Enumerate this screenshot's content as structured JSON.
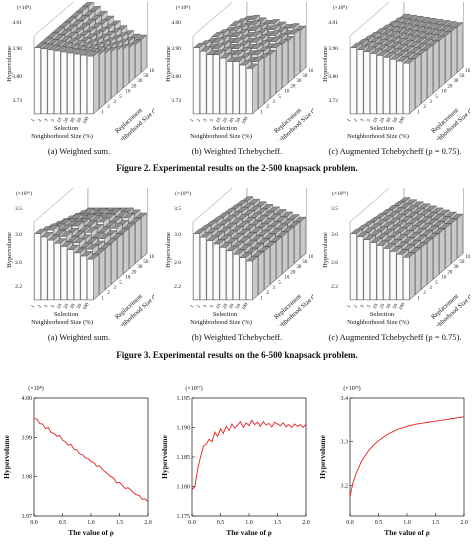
{
  "fig2": {
    "caption": "Figure 2. Experimental results on the 2-500 knapsack problem.",
    "panels": [
      {
        "mult": "(×10⁸)",
        "yticks": [
          "4.01",
          "3.90",
          "3.80",
          "3.73"
        ],
        "ylabel": "Hypervolume",
        "xlabel": "Selection",
        "xlabel2": "Neighborhood Size (%)",
        "zlabel": "Replacement",
        "zlabel2": "Neighborhood Size (%)",
        "xticks": [
          "1",
          "2",
          "3",
          "5",
          "10",
          "20",
          "30",
          "50",
          "100"
        ],
        "zticks": [
          "100",
          "50",
          "30",
          "20",
          "10",
          "5",
          "3",
          "2",
          "1"
        ],
        "caption": "(a) Weighted sum.",
        "pattern": "a"
      },
      {
        "mult": "(×10⁸)",
        "yticks": [
          "4.00",
          "3.90",
          "3.80",
          "3.73"
        ],
        "ylabel": "Hypervolume",
        "xlabel": "Selection",
        "xlabel2": "Neighborhood Size (%)",
        "zlabel": "Replacement",
        "zlabel2": "Neighborhood Size (%)",
        "xticks": [
          "1",
          "2",
          "3",
          "5",
          "10",
          "20",
          "30",
          "50",
          "100"
        ],
        "zticks": [
          "100",
          "50",
          "30",
          "20",
          "10",
          "5",
          "3",
          "2",
          "1"
        ],
        "caption": "(b) Weighted Tchebycheff.",
        "pattern": "b"
      },
      {
        "mult": "(×10⁸)",
        "yticks": [
          "4.01",
          "3.90",
          "3.80",
          "3.72"
        ],
        "ylabel": "Hypervolume",
        "xlabel": "Selection",
        "xlabel2": "Neighborhood Size (%)",
        "zlabel": "Replacement",
        "zlabel2": "Neighborhood Size (%)",
        "xticks": [
          "1",
          "2",
          "3",
          "5",
          "10",
          "20",
          "30",
          "50",
          "100"
        ],
        "zticks": [
          "100",
          "50",
          "30",
          "20",
          "10",
          "5",
          "3",
          "2",
          "1"
        ],
        "caption": "(c) Augmented Tchebycheff (ρ = 0.75).",
        "pattern": "c"
      }
    ]
  },
  "fig3": {
    "caption": "Figure 3. Experimental results on the 6-500 knapsack problem.",
    "panels": [
      {
        "mult": "(×10²⁹)",
        "yticks": [
          "3.5",
          "3.0",
          "2.6",
          "2.2"
        ],
        "ylabel": "Hypervolume",
        "xlabel": "Selection",
        "xlabel2": "Neighborhood Size (%)",
        "zlabel": "Replacement",
        "zlabel2": "Neighborhood Size (%)",
        "xticks": [
          "1",
          "2",
          "3",
          "5",
          "10",
          "20",
          "30",
          "50",
          "100"
        ],
        "zticks": [
          "100",
          "50",
          "30",
          "20",
          "10",
          "5",
          "3",
          "2",
          "1"
        ],
        "caption": "(a) Weighted sum.",
        "pattern": "d"
      },
      {
        "mult": "(×10²⁹)",
        "yticks": [
          "3.5",
          "3.0",
          "2.6",
          "2.2"
        ],
        "ylabel": "Hypervolume",
        "xlabel": "Selection",
        "xlabel2": "Neighborhood Size (%)",
        "zlabel": "Replacement",
        "zlabel2": "Neighborhood Size (%)",
        "xticks": [
          "1",
          "2",
          "3",
          "5",
          "10",
          "20",
          "30",
          "50",
          "100"
        ],
        "zticks": [
          "100",
          "50",
          "30",
          "20",
          "10",
          "5",
          "3",
          "2",
          "1"
        ],
        "caption": "(b) Weighted Tchebycheff.",
        "pattern": "e"
      },
      {
        "mult": "(×10²⁹)",
        "yticks": [
          "3.5",
          "3.0",
          "2.6",
          "2.2"
        ],
        "ylabel": "Hypervolume",
        "xlabel": "Selection",
        "xlabel2": "Neighborhood Size (%)",
        "zlabel": "Replacement",
        "zlabel2": "Neighborhood Size (%)",
        "xticks": [
          "1",
          "2",
          "3",
          "5",
          "10",
          "20",
          "30",
          "50",
          "100"
        ],
        "zticks": [
          "100",
          "50",
          "30",
          "20",
          "10",
          "5",
          "3",
          "2",
          "1"
        ],
        "caption": "(c) Augmented Tchebycheff (ρ = 0.75).",
        "pattern": "f"
      }
    ]
  },
  "chart_data": [
    {
      "type": "line",
      "title": "",
      "multiplier": "(×10⁸)",
      "xlabel": "The value of ρ",
      "ylabel": "Hypervolume",
      "xlim": [
        0,
        2
      ],
      "ylim": [
        3.97,
        4.0
      ],
      "xticks": [
        "0.0",
        "0.5",
        "1.0",
        "1.5",
        "2.0"
      ],
      "yticks": [
        "3.97",
        "3.98",
        "3.99",
        "4.00"
      ],
      "series": [
        {
          "color": "#e0201e",
          "x": [
            0.0,
            0.05,
            0.1,
            0.15,
            0.2,
            0.25,
            0.3,
            0.35,
            0.4,
            0.45,
            0.5,
            0.55,
            0.6,
            0.65,
            0.7,
            0.75,
            0.8,
            0.85,
            0.9,
            0.95,
            1.0,
            1.05,
            1.1,
            1.15,
            1.2,
            1.25,
            1.3,
            1.35,
            1.4,
            1.45,
            1.5,
            1.55,
            1.6,
            1.65,
            1.7,
            1.75,
            1.8,
            1.85,
            1.9,
            1.95,
            2.0
          ],
          "y": [
            3.9948,
            3.9946,
            3.9935,
            3.9934,
            3.9922,
            3.9925,
            3.9912,
            3.991,
            3.9903,
            3.9905,
            3.9893,
            3.9889,
            3.988,
            3.9882,
            3.987,
            3.9868,
            3.9858,
            3.9856,
            3.9848,
            3.9846,
            3.9838,
            3.9836,
            3.9826,
            3.9828,
            3.9818,
            3.9812,
            3.9806,
            3.98,
            3.9796,
            3.9784,
            3.9786,
            3.9778,
            3.977,
            3.9772,
            3.9766,
            3.9758,
            3.9754,
            3.9752,
            3.9742,
            3.9744,
            3.9736
          ]
        }
      ]
    },
    {
      "type": "line",
      "title": "",
      "multiplier": "(×10¹⁷)",
      "xlabel": "The value of ρ",
      "ylabel": "Hypervolume",
      "xlim": [
        0,
        2
      ],
      "ylim": [
        1.175,
        1.195
      ],
      "xticks": [
        "0.0",
        "0.5",
        "1.0",
        "1.5",
        "2.0"
      ],
      "yticks": [
        "1.175",
        "1.180",
        "1.185",
        "1.190",
        "1.195"
      ],
      "series": [
        {
          "color": "#e0201e",
          "x": [
            0.0,
            0.05,
            0.1,
            0.15,
            0.2,
            0.25,
            0.3,
            0.35,
            0.4,
            0.45,
            0.5,
            0.55,
            0.6,
            0.65,
            0.7,
            0.75,
            0.8,
            0.85,
            0.9,
            0.95,
            1.0,
            1.05,
            1.1,
            1.15,
            1.2,
            1.25,
            1.3,
            1.35,
            1.4,
            1.45,
            1.5,
            1.55,
            1.6,
            1.65,
            1.7,
            1.75,
            1.8,
            1.85,
            1.9,
            1.95,
            2.0
          ],
          "y": [
            1.1795,
            1.18,
            1.183,
            1.185,
            1.1868,
            1.1872,
            1.188,
            1.1876,
            1.1892,
            1.1885,
            1.1898,
            1.189,
            1.1902,
            1.1895,
            1.1906,
            1.1899,
            1.1904,
            1.191,
            1.19,
            1.1908,
            1.1903,
            1.1912,
            1.1905,
            1.1909,
            1.1902,
            1.191,
            1.1904,
            1.1907,
            1.1901,
            1.1909,
            1.1906,
            1.1903,
            1.1908,
            1.1901,
            1.1905,
            1.19,
            1.1906,
            1.1902,
            1.1905,
            1.19,
            1.1906
          ]
        }
      ]
    },
    {
      "type": "line",
      "title": "",
      "multiplier": "(×10²⁹)",
      "xlabel": "The value of ρ",
      "ylabel": "Hypervolume",
      "xlim": [
        0,
        2
      ],
      "ylim": [
        3.13,
        3.4
      ],
      "xticks": [
        "0.0",
        "0.5",
        "1.0",
        "1.5",
        "2.0"
      ],
      "yticks": [
        "3.2",
        "3.3",
        "3.4"
      ],
      "series": [
        {
          "color": "#e0201e",
          "x": [
            0.0,
            0.05,
            0.1,
            0.15,
            0.2,
            0.25,
            0.3,
            0.35,
            0.4,
            0.45,
            0.5,
            0.55,
            0.6,
            0.65,
            0.7,
            0.75,
            0.8,
            0.85,
            0.9,
            0.95,
            1.0,
            1.05,
            1.1,
            1.15,
            1.2,
            1.25,
            1.3,
            1.35,
            1.4,
            1.45,
            1.5,
            1.55,
            1.6,
            1.65,
            1.7,
            1.75,
            1.8,
            1.85,
            1.9,
            1.95,
            2.0
          ],
          "y": [
            3.175,
            3.205,
            3.225,
            3.24,
            3.255,
            3.265,
            3.275,
            3.283,
            3.29,
            3.297,
            3.302,
            3.307,
            3.312,
            3.316,
            3.32,
            3.323,
            3.326,
            3.329,
            3.331,
            3.333,
            3.335,
            3.337,
            3.338,
            3.34,
            3.341,
            3.342,
            3.343,
            3.344,
            3.345,
            3.346,
            3.347,
            3.348,
            3.349,
            3.35,
            3.351,
            3.352,
            3.353,
            3.354,
            3.355,
            3.356,
            3.357
          ]
        }
      ]
    }
  ]
}
